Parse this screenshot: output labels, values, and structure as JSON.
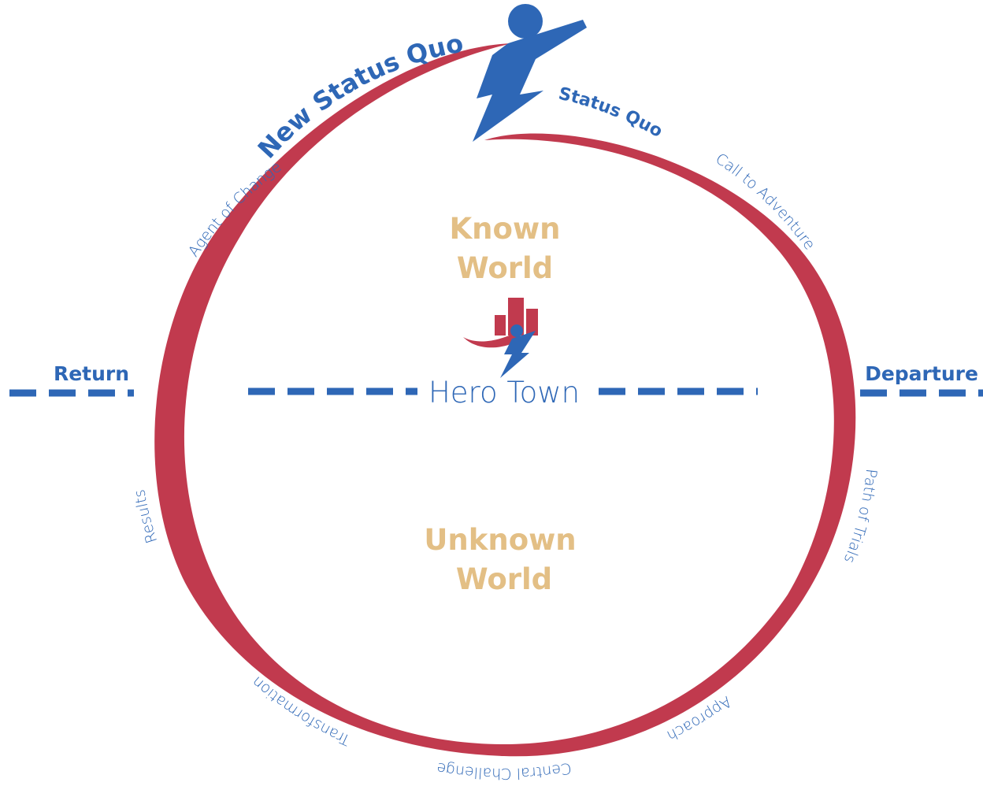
{
  "cycle": {
    "top_labels": [
      "New Status Quo",
      "Status Quo"
    ],
    "stages": [
      "Call to Adventure",
      "Path of Trials",
      "Approach",
      "Central Challenge",
      "Transformation",
      "Results",
      "Agent of Change"
    ],
    "thresholds": {
      "right": "Departure",
      "left": "Return"
    },
    "worlds": {
      "known": [
        "Known",
        "World"
      ],
      "unknown": [
        "Unknown",
        "World"
      ]
    },
    "center": "Hero Town"
  }
}
